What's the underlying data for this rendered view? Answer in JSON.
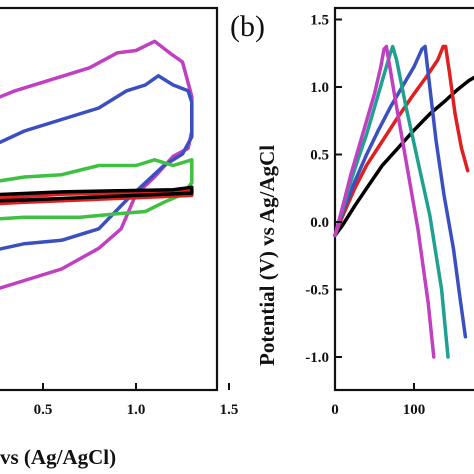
{
  "chart_data": [
    {
      "type": "line",
      "title": "",
      "xlabel": "vs (Ag/AgCl)",
      "ylabel": "",
      "xlim": [
        0.0,
        1.5
      ],
      "x_ticks": [
        "0.5",
        "1.0",
        "1.5"
      ],
      "grid": false,
      "series": [
        {
          "color": "#c040c0",
          "x": [
            0.0,
            0.15,
            0.35,
            0.55,
            0.75,
            0.9,
            1.0,
            1.1,
            1.18,
            1.25,
            1.3,
            1.3,
            1.28,
            1.2,
            1.1,
            1.0,
            0.92,
            0.8,
            0.6,
            0.4,
            0.2,
            0.0
          ],
          "y": [
            0.72,
            0.82,
            0.95,
            1.05,
            1.15,
            1.28,
            1.3,
            1.38,
            1.28,
            1.2,
            0.9,
            0.6,
            0.45,
            0.38,
            0.2,
            0.05,
            -0.25,
            -0.42,
            -0.6,
            -0.7,
            -0.8,
            -0.82
          ]
        },
        {
          "color": "#3a4fc0",
          "x": [
            0.0,
            0.2,
            0.4,
            0.6,
            0.8,
            0.95,
            1.05,
            1.12,
            1.2,
            1.28,
            1.3,
            1.3,
            1.25,
            1.15,
            1.05,
            0.95,
            0.8,
            0.6,
            0.4,
            0.2,
            0.0
          ],
          "y": [
            0.35,
            0.45,
            0.6,
            0.7,
            0.8,
            0.95,
            1.0,
            1.08,
            1.0,
            0.95,
            0.85,
            0.55,
            0.4,
            0.3,
            0.15,
            0.0,
            -0.25,
            -0.35,
            -0.38,
            -0.45,
            -0.47
          ]
        },
        {
          "color": "#40c040",
          "x": [
            0.0,
            0.2,
            0.4,
            0.6,
            0.8,
            1.0,
            1.1,
            1.2,
            1.3,
            1.3,
            1.25,
            1.15,
            1.05,
            0.9,
            0.7,
            0.4,
            0.2,
            0.0
          ],
          "y": [
            0.05,
            0.15,
            0.2,
            0.22,
            0.3,
            0.3,
            0.35,
            0.3,
            0.35,
            0.15,
            0.05,
            -0.02,
            -0.1,
            -0.12,
            -0.15,
            -0.15,
            -0.17,
            -0.18
          ]
        },
        {
          "color": "#e02020",
          "x": [
            0.0,
            0.3,
            0.6,
            0.9,
            1.2,
            1.3,
            1.3,
            1.0,
            0.7,
            0.4,
            0.0
          ],
          "y": [
            0.0,
            0.02,
            0.05,
            0.06,
            0.07,
            0.08,
            0.04,
            0.02,
            0.0,
            -0.02,
            -0.05
          ]
        },
        {
          "color": "#000000",
          "x": [
            0.0,
            0.3,
            0.6,
            0.9,
            1.2,
            1.3,
            1.3,
            1.0,
            0.7,
            0.4,
            0.0
          ],
          "y": [
            0.03,
            0.05,
            0.07,
            0.08,
            0.09,
            0.11,
            0.06,
            0.04,
            0.02,
            0.0,
            -0.02
          ]
        }
      ]
    },
    {
      "type": "line",
      "title": "(b)",
      "xlabel": "",
      "ylabel": "Potential (V) vs Ag/AgCl",
      "xlim": [
        0,
        200
      ],
      "ylim": [
        -1.0,
        1.5
      ],
      "x_ticks": [
        "0",
        "100"
      ],
      "y_ticks": [
        "1.5",
        "1.0",
        "0.5",
        "0.0",
        "-0.5",
        "-1.0"
      ],
      "grid": false,
      "series": [
        {
          "color": "#000000",
          "x": [
            0,
            10,
            25,
            40,
            60,
            80,
            100,
            120,
            140,
            155,
            170,
            185,
            200
          ],
          "y": [
            -0.1,
            -0.02,
            0.12,
            0.25,
            0.42,
            0.55,
            0.68,
            0.8,
            0.9,
            0.98,
            1.05,
            1.1,
            1.15
          ]
        },
        {
          "color": "#e02020",
          "x": [
            0,
            10,
            25,
            40,
            60,
            80,
            100,
            115,
            130,
            137,
            140,
            145,
            152,
            160,
            168
          ],
          "y": [
            -0.1,
            0.05,
            0.25,
            0.42,
            0.6,
            0.78,
            0.95,
            1.07,
            1.2,
            1.3,
            1.3,
            1.1,
            0.8,
            0.55,
            0.38
          ]
        },
        {
          "color": "#3a4fc0",
          "x": [
            0,
            10,
            25,
            40,
            55,
            70,
            85,
            100,
            110,
            114,
            120,
            128,
            138,
            150,
            158,
            165
          ],
          "y": [
            -0.1,
            0.08,
            0.3,
            0.5,
            0.68,
            0.85,
            1.0,
            1.15,
            1.28,
            1.3,
            1.0,
            0.6,
            0.2,
            -0.2,
            -0.55,
            -0.85
          ]
        },
        {
          "color": "#20a090",
          "x": [
            0,
            10,
            20,
            30,
            40,
            50,
            60,
            70,
            73,
            78,
            90,
            105,
            120,
            135,
            143
          ],
          "y": [
            -0.1,
            0.1,
            0.3,
            0.48,
            0.65,
            0.85,
            1.05,
            1.25,
            1.3,
            1.2,
            0.85,
            0.45,
            0.05,
            -0.5,
            -1.0
          ]
        },
        {
          "color": "#c040c0",
          "x": [
            0,
            10,
            20,
            30,
            40,
            50,
            58,
            62,
            65,
            75,
            90,
            105,
            118,
            125
          ],
          "y": [
            -0.1,
            0.12,
            0.35,
            0.55,
            0.75,
            0.95,
            1.15,
            1.28,
            1.3,
            0.95,
            0.45,
            -0.05,
            -0.6,
            -1.0
          ]
        }
      ]
    }
  ]
}
